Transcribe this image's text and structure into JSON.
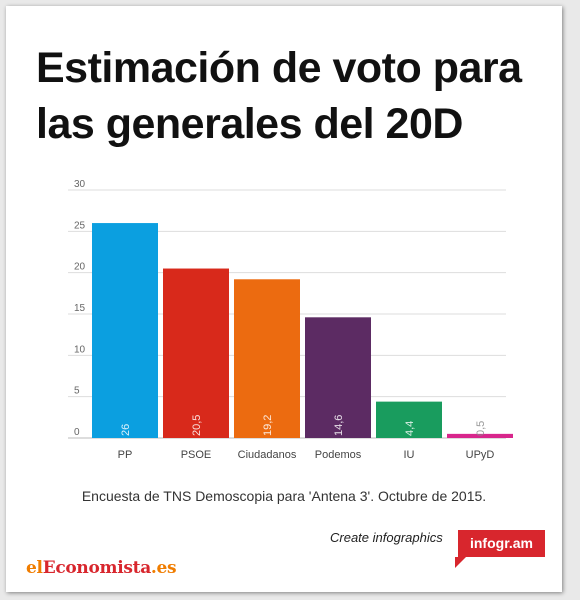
{
  "title_lines": [
    "Estimación de voto para",
    "las generales del 20D"
  ],
  "caption": "Encuesta de TNS Demoscopia para 'Antena 3'.  Octubre de 2015.",
  "create_label": "Create infographics",
  "brand_label": "infogr.am",
  "logo": {
    "part1": "el",
    "part2": "Economista",
    "part3": ".es"
  },
  "chart_data": {
    "type": "bar",
    "categories": [
      "PP",
      "PSOE",
      "Ciudadanos",
      "Podemos",
      "IU",
      "UPyD"
    ],
    "values": [
      26,
      20.5,
      19.2,
      14.6,
      4.4,
      0.5
    ],
    "value_labels": [
      "26",
      "20,5",
      "19,2",
      "14,6",
      "4,4",
      "0,5"
    ],
    "colors": [
      "#0b9fe0",
      "#d8291b",
      "#ec6b10",
      "#5c2b63",
      "#199c5e",
      "#d8268c"
    ],
    "ylim": [
      0,
      30
    ],
    "yticks": [
      0,
      5,
      10,
      15,
      20,
      25,
      30
    ],
    "grid": true,
    "title": "",
    "xlabel": "",
    "ylabel": ""
  }
}
